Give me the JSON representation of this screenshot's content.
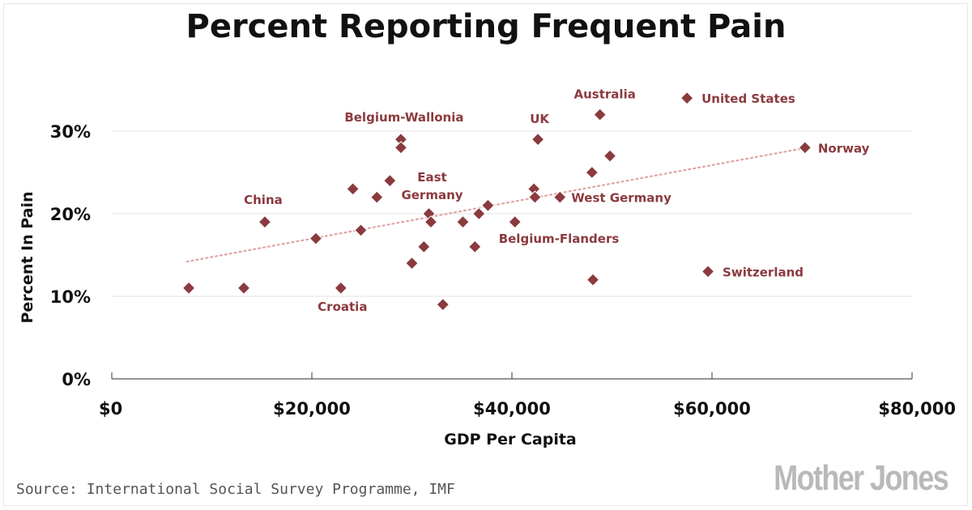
{
  "chart_data": {
    "type": "scatter",
    "title": "Percent Reporting Frequent Pain",
    "xlabel": "GDP Per Capita",
    "ylabel": "Percent In Pain",
    "xlim": [
      0,
      80000
    ],
    "ylim": [
      0,
      35
    ],
    "x_ticks": [
      0,
      20000,
      40000,
      60000,
      80000
    ],
    "x_tick_labels": [
      "$0",
      "$20,000",
      "$40,000",
      "$60,000",
      "$80,000"
    ],
    "y_ticks": [
      0,
      10,
      20,
      30
    ],
    "y_tick_labels": [
      "0%",
      "10%",
      "20%",
      "30%"
    ],
    "grid": "horizontal",
    "trendline": {
      "style": "dotted",
      "x": [
        7500,
        69500
      ],
      "y": [
        14.2,
        28.0
      ]
    },
    "points": [
      {
        "x": 7700,
        "y": 11,
        "label": ""
      },
      {
        "x": 13200,
        "y": 11,
        "label": ""
      },
      {
        "x": 15300,
        "y": 19,
        "label": "China"
      },
      {
        "x": 20400,
        "y": 17,
        "label": ""
      },
      {
        "x": 22900,
        "y": 11,
        "label": "Croatia"
      },
      {
        "x": 24100,
        "y": 23,
        "label": ""
      },
      {
        "x": 24900,
        "y": 18,
        "label": ""
      },
      {
        "x": 26500,
        "y": 22,
        "label": ""
      },
      {
        "x": 27800,
        "y": 24,
        "label": ""
      },
      {
        "x": 28900,
        "y": 29,
        "label": "Belgium-Wallonia"
      },
      {
        "x": 28900,
        "y": 28,
        "label": ""
      },
      {
        "x": 30000,
        "y": 14,
        "label": ""
      },
      {
        "x": 31200,
        "y": 16,
        "label": ""
      },
      {
        "x": 31700,
        "y": 20,
        "label": "East Germany"
      },
      {
        "x": 31900,
        "y": 19,
        "label": ""
      },
      {
        "x": 33100,
        "y": 9,
        "label": ""
      },
      {
        "x": 35100,
        "y": 19,
        "label": ""
      },
      {
        "x": 36300,
        "y": 16,
        "label": ""
      },
      {
        "x": 36700,
        "y": 20,
        "label": ""
      },
      {
        "x": 37600,
        "y": 21,
        "label": ""
      },
      {
        "x": 40300,
        "y": 19,
        "label": "Belgium-Flanders"
      },
      {
        "x": 42200,
        "y": 23,
        "label": ""
      },
      {
        "x": 42300,
        "y": 22,
        "label": ""
      },
      {
        "x": 42600,
        "y": 29,
        "label": "UK"
      },
      {
        "x": 44800,
        "y": 22,
        "label": "West Germany"
      },
      {
        "x": 48000,
        "y": 25,
        "label": ""
      },
      {
        "x": 48100,
        "y": 12,
        "label": ""
      },
      {
        "x": 48800,
        "y": 32,
        "label": "Australia"
      },
      {
        "x": 49800,
        "y": 27,
        "label": ""
      },
      {
        "x": 57500,
        "y": 34,
        "label": "United States"
      },
      {
        "x": 59600,
        "y": 13,
        "label": "Switzerland"
      },
      {
        "x": 69300,
        "y": 28,
        "label": "Norway"
      }
    ],
    "color": "#8b3a3e",
    "trend_color": "#e0a3a3"
  },
  "footer": {
    "source": "Source: International Social Survey Programme, IMF",
    "brand": "Mother Jones"
  }
}
